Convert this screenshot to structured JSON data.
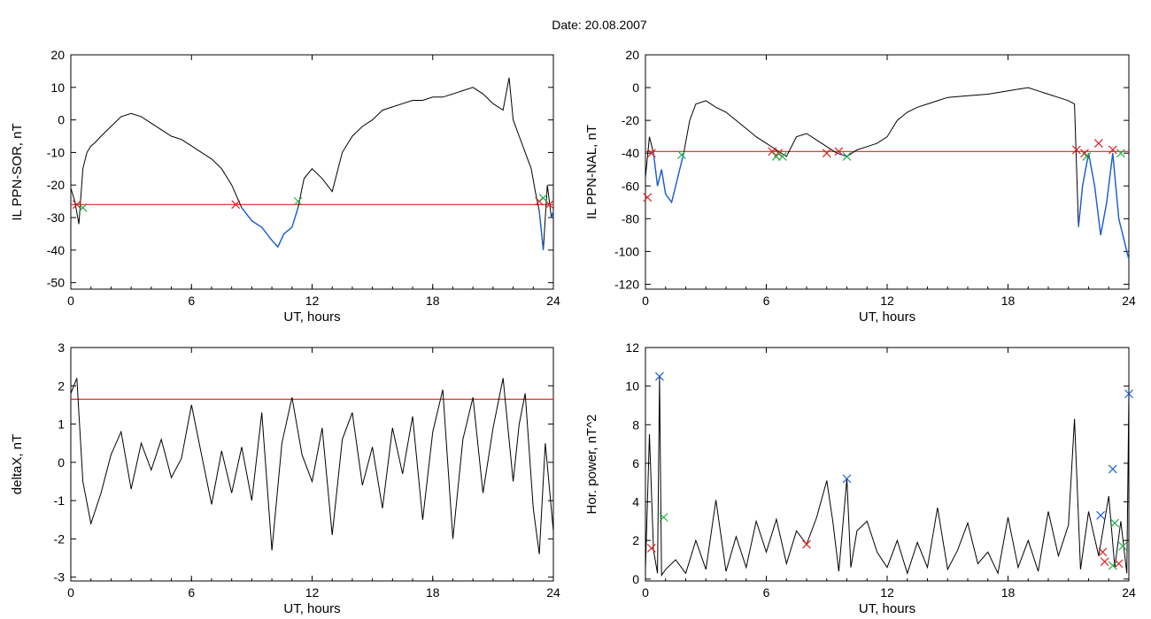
{
  "title": "Date:  20.08.2007",
  "colors": {
    "line": "#000000",
    "threshold": "#e02020",
    "highlight": "#1a5fd6",
    "marker_red": "#e02020",
    "marker_green": "#22b04a",
    "marker_blue": "#1a5fd6"
  },
  "chart_data": [
    {
      "type": "line",
      "xlabel": "UT, hours",
      "ylabel": "IL PPN-SOR, nT",
      "xlim": [
        0,
        24
      ],
      "ylim": [
        -52,
        20
      ],
      "xticks": [
        "0",
        "6",
        "12",
        "18",
        "24"
      ],
      "yticks": [
        "20",
        "10",
        "0",
        "-10",
        "-20",
        "-30",
        "-40",
        "-50"
      ],
      "threshold": -26,
      "series": [
        {
          "x": [
            0,
            0.2,
            0.4,
            0.6,
            0.8,
            1.0,
            1.2,
            1.5,
            2.0,
            2.5,
            3.0,
            3.5,
            4.0,
            4.5,
            5.0,
            5.5,
            6.0,
            6.5,
            7.0,
            7.5,
            8.0,
            8.5,
            9.0,
            9.5,
            10.0,
            10.3,
            10.6,
            11.0,
            11.3,
            11.6,
            12.0,
            12.5,
            13.0,
            13.5,
            14.0,
            14.5,
            15.0,
            15.5,
            16.0,
            16.5,
            17.0,
            17.5,
            18.0,
            18.5,
            19.0,
            19.5,
            20.0,
            20.5,
            21.0,
            21.5,
            21.8,
            22.0,
            22.3,
            22.6,
            22.9,
            23.1,
            23.3,
            23.5,
            23.7,
            23.9,
            24.0
          ],
          "y": [
            -21,
            -25,
            -32,
            -15,
            -10,
            -8,
            -7,
            -5,
            -2,
            1,
            2,
            1,
            -1,
            -3,
            -5,
            -6,
            -8,
            -10,
            -12,
            -15,
            -20,
            -27,
            -31,
            -33,
            -37,
            -39,
            -35,
            -33,
            -27,
            -18,
            -15,
            -18,
            -22,
            -10,
            -5,
            -2,
            0,
            3,
            4,
            5,
            6,
            6,
            7,
            7,
            8,
            9,
            10,
            8,
            5,
            3,
            13,
            0,
            -5,
            -10,
            -15,
            -22,
            -28,
            -40,
            -20,
            -30,
            -28
          ]
        }
      ],
      "markers_red": [
        [
          0.3,
          -26
        ],
        [
          8.2,
          -26
        ],
        [
          23.3,
          -25
        ],
        [
          23.8,
          -26
        ]
      ],
      "markers_green": [
        [
          0.6,
          -27
        ],
        [
          11.3,
          -25
        ],
        [
          23.5,
          -24
        ]
      ]
    },
    {
      "type": "line",
      "xlabel": "UT, hours",
      "ylabel": "IL PPN-NAL, nT",
      "xlim": [
        0,
        24
      ],
      "ylim": [
        -123,
        20
      ],
      "xticks": [
        "0",
        "6",
        "12",
        "18",
        "24"
      ],
      "yticks": [
        "20",
        "0",
        "-20",
        "-40",
        "-60",
        "-80",
        "-100",
        "-120"
      ],
      "threshold": -39,
      "series": [
        {
          "x": [
            0,
            0.2,
            0.4,
            0.6,
            0.8,
            1.0,
            1.3,
            1.6,
            1.9,
            2.2,
            2.5,
            3.0,
            3.5,
            4.0,
            4.5,
            5.0,
            5.5,
            6.0,
            6.5,
            7.0,
            7.5,
            8.0,
            8.5,
            9.0,
            9.5,
            10.0,
            10.5,
            11.0,
            11.5,
            12.0,
            12.5,
            13.0,
            13.5,
            14.0,
            14.5,
            15.0,
            16.0,
            17.0,
            18.0,
            18.5,
            19.0,
            19.5,
            20.0,
            20.5,
            21.0,
            21.3,
            21.5,
            21.7,
            22.0,
            22.3,
            22.6,
            22.9,
            23.2,
            23.5,
            23.8,
            24.0
          ],
          "y": [
            -55,
            -30,
            -40,
            -60,
            -50,
            -65,
            -70,
            -55,
            -40,
            -20,
            -10,
            -8,
            -12,
            -15,
            -20,
            -25,
            -30,
            -34,
            -38,
            -42,
            -30,
            -28,
            -32,
            -36,
            -40,
            -42,
            -38,
            -36,
            -34,
            -30,
            -20,
            -15,
            -12,
            -10,
            -8,
            -6,
            -5,
            -4,
            -2,
            -1,
            0,
            -2,
            -4,
            -6,
            -8,
            -10,
            -85,
            -60,
            -40,
            -60,
            -90,
            -70,
            -40,
            -80,
            -95,
            -105
          ]
        }
      ],
      "markers_red": [
        [
          0.1,
          -67
        ],
        [
          0.3,
          -40
        ],
        [
          6.3,
          -39
        ],
        [
          6.6,
          -40
        ],
        [
          9.0,
          -40
        ],
        [
          9.6,
          -39
        ],
        [
          21.4,
          -38
        ],
        [
          21.8,
          -40
        ],
        [
          22.5,
          -34
        ],
        [
          23.2,
          -38
        ]
      ],
      "markers_green": [
        [
          1.8,
          -41
        ],
        [
          6.5,
          -42
        ],
        [
          6.8,
          -42
        ],
        [
          10.0,
          -42
        ],
        [
          21.9,
          -42
        ],
        [
          23.6,
          -40
        ]
      ]
    },
    {
      "type": "line",
      "xlabel": "UT, hours",
      "ylabel": "deltaX, nT",
      "xlim": [
        0,
        24
      ],
      "ylim": [
        -3.1,
        3
      ],
      "xticks": [
        "0",
        "6",
        "12",
        "18",
        "24"
      ],
      "yticks": [
        "3",
        "2",
        "1",
        "0",
        "-1",
        "-2",
        "-3"
      ],
      "threshold": 1.65,
      "series": [
        {
          "x": [
            0,
            0.3,
            0.6,
            1.0,
            1.5,
            2.0,
            2.5,
            3.0,
            3.5,
            4.0,
            4.5,
            5.0,
            5.5,
            6.0,
            6.5,
            7.0,
            7.5,
            8.0,
            8.5,
            9.0,
            9.5,
            10.0,
            10.5,
            11.0,
            11.5,
            12.0,
            12.5,
            13.0,
            13.5,
            14.0,
            14.5,
            15.0,
            15.5,
            16.0,
            16.5,
            17.0,
            17.5,
            18.0,
            18.5,
            19.0,
            19.5,
            20.0,
            20.5,
            21.0,
            21.5,
            22.0,
            22.3,
            22.6,
            23.0,
            23.3,
            23.6,
            24.0
          ],
          "y": [
            1.8,
            2.2,
            -0.5,
            -1.6,
            -0.8,
            0.2,
            0.8,
            -0.7,
            0.5,
            -0.2,
            0.6,
            -0.4,
            0.1,
            1.5,
            0.2,
            -1.1,
            0.3,
            -0.8,
            0.4,
            -1.0,
            1.3,
            -2.3,
            0.5,
            1.7,
            0.2,
            -0.5,
            0.9,
            -1.9,
            0.6,
            1.3,
            -0.6,
            0.4,
            -1.2,
            0.9,
            -0.3,
            1.2,
            -1.5,
            0.8,
            1.9,
            -2.0,
            0.6,
            1.7,
            -0.8,
            0.9,
            2.2,
            -0.5,
            1.0,
            1.8,
            -1.2,
            -2.4,
            0.5,
            -1.8
          ]
        }
      ]
    },
    {
      "type": "line",
      "xlabel": "UT, hours",
      "ylabel": "Hor. power, nT^2",
      "xlim": [
        0,
        24
      ],
      "ylim": [
        -0.1,
        12
      ],
      "xticks": [
        "0",
        "6",
        "12",
        "18",
        "24"
      ],
      "yticks": [
        "12",
        "10",
        "8",
        "6",
        "4",
        "2",
        "0"
      ],
      "series": [
        {
          "x": [
            0,
            0.2,
            0.4,
            0.6,
            0.7,
            0.8,
            1.0,
            1.5,
            2.0,
            2.5,
            3.0,
            3.5,
            4.0,
            4.5,
            5.0,
            5.5,
            6.0,
            6.5,
            7.0,
            7.5,
            8.0,
            8.5,
            9.0,
            9.3,
            9.6,
            10.0,
            10.2,
            10.5,
            11.0,
            11.5,
            12.0,
            12.5,
            13.0,
            13.5,
            14.0,
            14.5,
            15.0,
            15.5,
            16.0,
            16.5,
            17.0,
            17.5,
            18.0,
            18.5,
            19.0,
            19.5,
            20.0,
            20.5,
            21.0,
            21.3,
            21.6,
            22.0,
            22.5,
            23.0,
            23.3,
            23.6,
            23.9,
            24.0
          ],
          "y": [
            0.5,
            7.5,
            1.5,
            0.3,
            10.5,
            0.2,
            0.5,
            1.0,
            0.3,
            2.0,
            0.5,
            4.1,
            0.4,
            2.2,
            0.6,
            3.0,
            1.4,
            3.1,
            0.8,
            2.5,
            1.8,
            3.2,
            5.1,
            3.0,
            0.4,
            5.2,
            0.6,
            2.5,
            3.0,
            1.4,
            0.6,
            2.0,
            0.3,
            1.9,
            0.6,
            3.7,
            0.5,
            1.5,
            2.9,
            0.8,
            1.4,
            0.3,
            3.2,
            0.6,
            2.0,
            0.4,
            3.5,
            1.2,
            2.8,
            8.3,
            0.5,
            3.5,
            1.2,
            4.3,
            0.6,
            3.0,
            0.3,
            9.6
          ]
        }
      ],
      "markers_red": [
        [
          0.3,
          1.6
        ],
        [
          8.0,
          1.8
        ],
        [
          22.7,
          1.4
        ],
        [
          22.8,
          0.9
        ],
        [
          23.5,
          0.8
        ]
      ],
      "markers_green": [
        [
          0.9,
          3.2
        ],
        [
          23.3,
          2.9
        ],
        [
          23.7,
          1.7
        ],
        [
          23.2,
          0.7
        ]
      ],
      "markers_blue": [
        [
          0.7,
          10.5
        ],
        [
          10.0,
          5.2
        ],
        [
          22.6,
          3.3
        ],
        [
          23.2,
          5.7
        ],
        [
          24.0,
          9.6
        ]
      ]
    }
  ]
}
